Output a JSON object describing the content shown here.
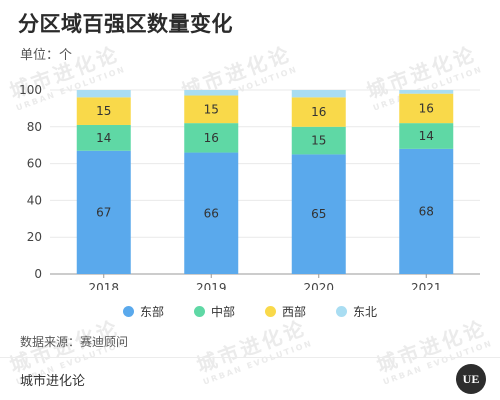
{
  "title": "分区域百强区数量变化",
  "unit_label": "单位：个",
  "watermark": {
    "cn": "城市进化论",
    "en": "URBAN EVOLUTION"
  },
  "source": "数据来源：赛迪顾问",
  "brand": "城市进化论",
  "logo_text": "UE",
  "colors": {
    "东部": "#5aa9ec",
    "中部": "#5fd8a5",
    "西部": "#f9d94a",
    "东北": "#a9ddf2"
  },
  "chart_data": {
    "type": "bar",
    "stacked": true,
    "categories": [
      "2018",
      "2019",
      "2020",
      "2021"
    ],
    "series": [
      {
        "name": "东部",
        "values": [
          67,
          66,
          65,
          68
        ]
      },
      {
        "name": "中部",
        "values": [
          14,
          16,
          15,
          14
        ]
      },
      {
        "name": "西部",
        "values": [
          15,
          15,
          16,
          16
        ]
      },
      {
        "name": "东北",
        "values": [
          4,
          3,
          4,
          2
        ]
      }
    ],
    "labeled_series": [
      "东部",
      "中部",
      "西部"
    ],
    "ylim": [
      0,
      100
    ],
    "yticks": [
      0,
      20,
      40,
      60,
      80,
      100
    ],
    "grid": true,
    "legend_position": "bottom"
  }
}
